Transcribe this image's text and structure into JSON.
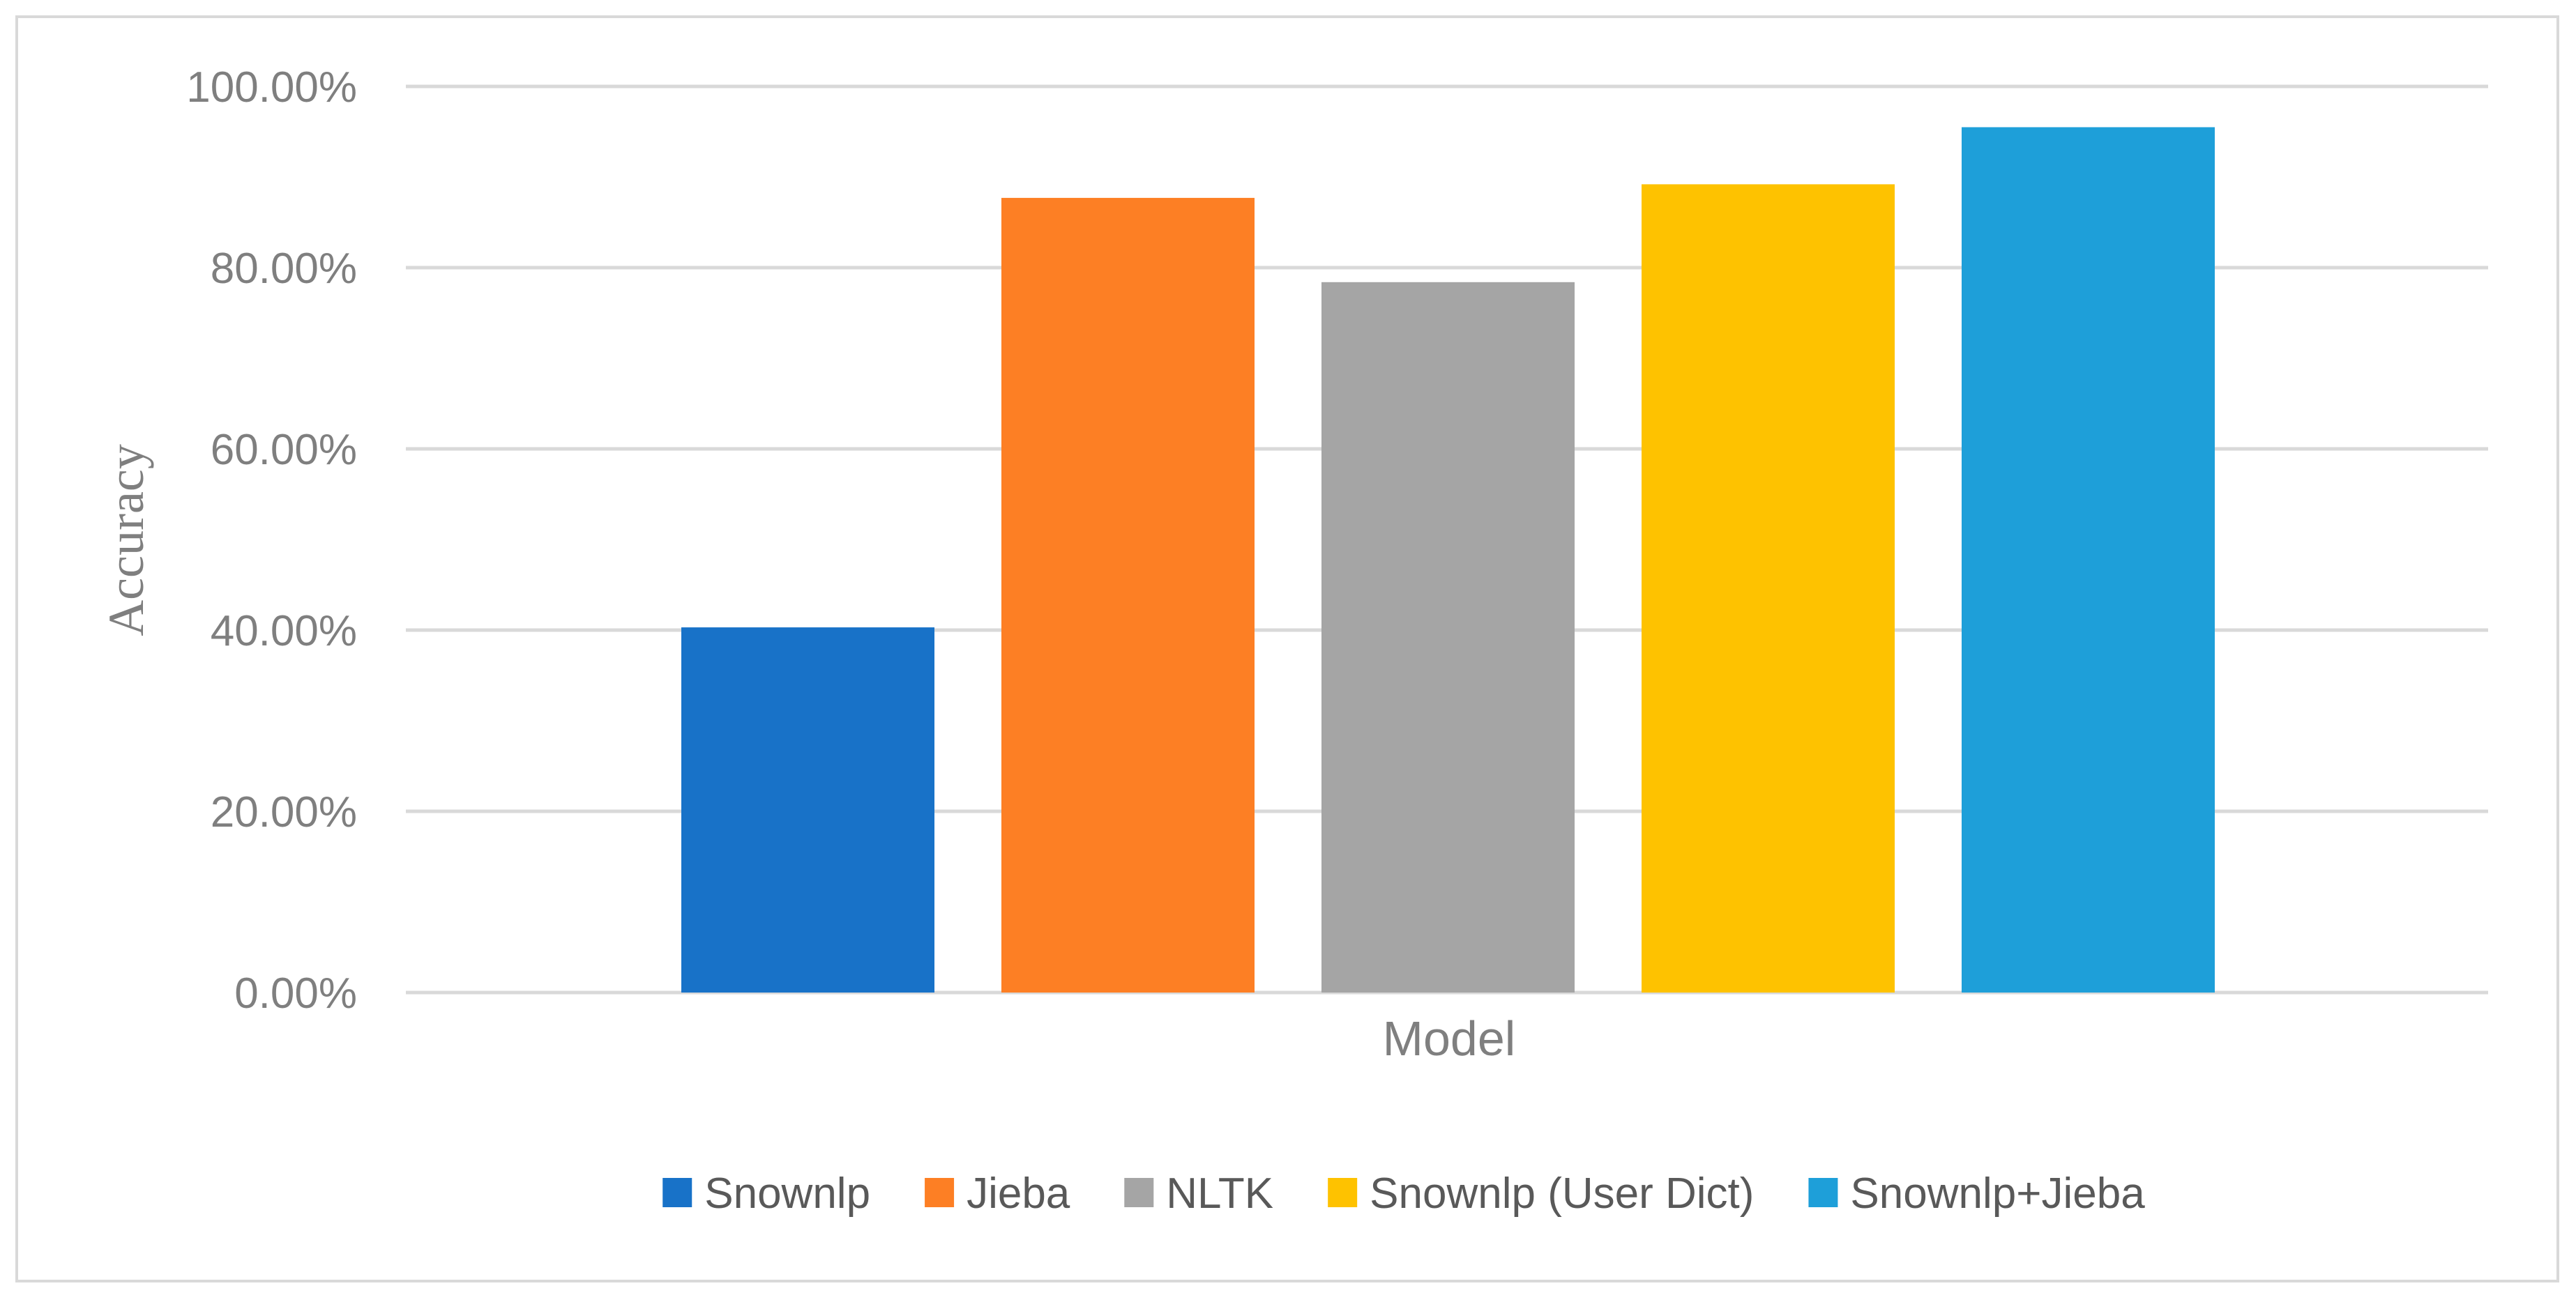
{
  "chart_data": {
    "type": "bar",
    "title": "",
    "xlabel": "Model",
    "ylabel": "Accuracy",
    "categories": [
      ""
    ],
    "ylim": [
      0,
      100
    ],
    "yticks": [
      "0.00%",
      "20.00%",
      "40.00%",
      "60.00%",
      "80.00%",
      "100.00%"
    ],
    "grid": true,
    "legend_position": "bottom",
    "series": [
      {
        "name": "Snownlp",
        "values": [
          40.3
        ],
        "color": "#1872c8"
      },
      {
        "name": "Jieba",
        "values": [
          87.7
        ],
        "color": "#fd7f24"
      },
      {
        "name": "NLTK",
        "values": [
          78.4
        ],
        "color": "#a5a5a5"
      },
      {
        "name": "Snownlp (User Dict)",
        "values": [
          89.2
        ],
        "color": "#fec200"
      },
      {
        "name": "Snownlp+Jieba",
        "values": [
          95.5
        ],
        "color": "#1e9fd9"
      }
    ]
  }
}
